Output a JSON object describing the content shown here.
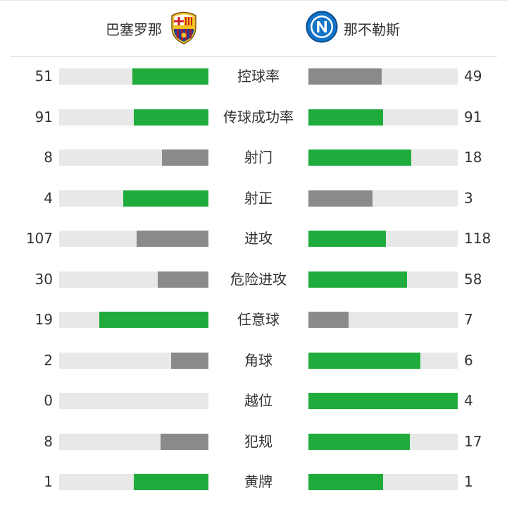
{
  "colors": {
    "leader": "#1fac3c",
    "trailer": "#8a8a8a",
    "track": "#e8e8e8"
  },
  "teams": {
    "home": {
      "name": "巴塞罗那",
      "logo_icon": "fc-barcelona-crest-icon"
    },
    "away": {
      "name": "那不勒斯",
      "logo_icon": "ssc-napoli-crest-icon"
    }
  },
  "stats": [
    {
      "label": "控球率",
      "home": "51",
      "away": "49",
      "home_share": 0.51,
      "away_share": 0.49,
      "home_color": "green",
      "away_color": "gray"
    },
    {
      "label": "传球成功率",
      "home": "91",
      "away": "91",
      "home_share": 0.5,
      "away_share": 0.5,
      "home_color": "green",
      "away_color": "green"
    },
    {
      "label": "射门",
      "home": "8",
      "away": "18",
      "home_share": 0.31,
      "away_share": 0.69,
      "home_color": "gray",
      "away_color": "green"
    },
    {
      "label": "射正",
      "home": "4",
      "away": "3",
      "home_share": 0.57,
      "away_share": 0.43,
      "home_color": "green",
      "away_color": "gray"
    },
    {
      "label": "进攻",
      "home": "107",
      "away": "118",
      "home_share": 0.48,
      "away_share": 0.52,
      "home_color": "gray",
      "away_color": "green"
    },
    {
      "label": "危险进攻",
      "home": "30",
      "away": "58",
      "home_share": 0.34,
      "away_share": 0.66,
      "home_color": "gray",
      "away_color": "green"
    },
    {
      "label": "任意球",
      "home": "19",
      "away": "7",
      "home_share": 0.73,
      "away_share": 0.27,
      "home_color": "green",
      "away_color": "gray"
    },
    {
      "label": "角球",
      "home": "2",
      "away": "6",
      "home_share": 0.25,
      "away_share": 0.75,
      "home_color": "gray",
      "away_color": "green"
    },
    {
      "label": "越位",
      "home": "0",
      "away": "4",
      "home_share": 0.0,
      "away_share": 1.0,
      "home_color": "gray",
      "away_color": "green"
    },
    {
      "label": "犯规",
      "home": "8",
      "away": "17",
      "home_share": 0.32,
      "away_share": 0.68,
      "home_color": "gray",
      "away_color": "green"
    },
    {
      "label": "黄牌",
      "home": "1",
      "away": "1",
      "home_share": 0.5,
      "away_share": 0.5,
      "home_color": "green",
      "away_color": "green"
    }
  ]
}
